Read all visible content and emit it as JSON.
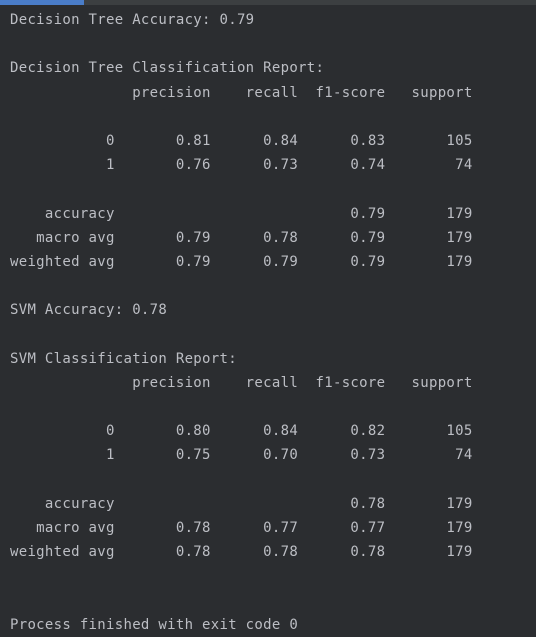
{
  "console": {
    "lines": [
      "Decision Tree Accuracy: 0.79",
      "",
      "Decision Tree Classification Report:",
      "              precision    recall  f1-score   support",
      "",
      "           0       0.81      0.84      0.83       105",
      "           1       0.76      0.73      0.74        74",
      "",
      "    accuracy                           0.79       179",
      "   macro avg       0.79      0.78      0.79       179",
      "weighted avg       0.79      0.79      0.79       179",
      "",
      "SVM Accuracy: 0.78",
      "",
      "SVM Classification Report:",
      "              precision    recall  f1-score   support",
      "",
      "           0       0.80      0.84      0.82       105",
      "           1       0.75      0.70      0.73        74",
      "",
      "    accuracy                           0.78       179",
      "   macro avg       0.78      0.77      0.77       179",
      "weighted avg       0.78      0.78      0.78       179",
      "",
      "",
      "Process finished with exit code 0"
    ]
  }
}
